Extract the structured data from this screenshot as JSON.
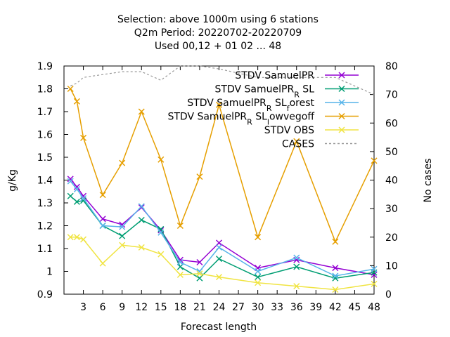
{
  "chart_data": {
    "type": "line",
    "title_lines": [
      "Selection: above 1000m using     6 stations",
      "Q2m   Period: 20220702-20220709",
      "Used  00,12  + 01 02 ... 48"
    ],
    "xlabel": "Forecast length",
    "ylabel": "g/Kg",
    "y2label": "No cases",
    "x_ticks": [
      3,
      6,
      9,
      12,
      15,
      18,
      21,
      24,
      27,
      30,
      33,
      36,
      39,
      42,
      45,
      48
    ],
    "y_ticks": [
      0.9,
      1.0,
      1.1,
      1.2,
      1.3,
      1.4,
      1.5,
      1.6,
      1.7,
      1.8,
      1.9
    ],
    "y_tick_labels": [
      "0.9",
      "1",
      "1.1",
      "1.2",
      "1.3",
      "1.4",
      "1.5",
      "1.6",
      "1.7",
      "1.8",
      "1.9"
    ],
    "y2_ticks": [
      0,
      10,
      20,
      30,
      40,
      50,
      60,
      70,
      80
    ],
    "xlim": [
      0,
      48
    ],
    "ylim": [
      0.9,
      1.9
    ],
    "y2lim": [
      0,
      80
    ],
    "grid": false,
    "legend_position": "top-right",
    "x": [
      1,
      2,
      3,
      6,
      9,
      12,
      15,
      18,
      21,
      24,
      30,
      36,
      42,
      48
    ],
    "series": [
      {
        "name": "STDV SamuelPR",
        "name_parts": [
          "STDV SamuelPR"
        ],
        "color": "#9400d3",
        "marker": "x",
        "axis": "y",
        "values": [
          1.405,
          1.37,
          1.33,
          1.23,
          1.205,
          1.28,
          1.18,
          1.05,
          1.04,
          1.125,
          1.015,
          1.05,
          1.015,
          0.985
        ]
      },
      {
        "name": "STDV SamuelPR_R SL",
        "name_parts": [
          "STDV SamuelPR",
          "R",
          " SL"
        ],
        "color": "#009e73",
        "marker": "x",
        "axis": "y",
        "values": [
          1.33,
          1.305,
          1.31,
          1.2,
          1.155,
          1.225,
          1.185,
          1.02,
          0.97,
          1.055,
          0.975,
          1.02,
          0.97,
          0.995
        ]
      },
      {
        "name": "STDV SamuelPR_R SL_forest",
        "name_parts": [
          "STDV SamuelPR",
          "R",
          " SL",
          "f",
          "orest"
        ],
        "color": "#56b4e9",
        "marker": "x",
        "axis": "y",
        "values": [
          1.395,
          1.36,
          1.32,
          1.2,
          1.195,
          1.285,
          1.17,
          1.04,
          1.0,
          1.105,
          1.0,
          1.06,
          0.98,
          1.01
        ]
      },
      {
        "name": "STDV SamuelPR_R SL_lowvegoff",
        "name_parts": [
          "STDV Sam",
          "uelPR",
          "R",
          " SL",
          "l",
          "owvegoff"
        ],
        "color": "#e69f00",
        "marker": "x",
        "axis": "y",
        "values": [
          1.8,
          1.745,
          1.585,
          1.335,
          1.475,
          1.7,
          1.49,
          1.2,
          1.415,
          1.73,
          1.15,
          1.57,
          1.13,
          1.485
        ]
      },
      {
        "name": "STDV OBS",
        "name_parts": [
          "STDV OBS"
        ],
        "color": "#f0e442",
        "marker": "x",
        "axis": "y",
        "values": [
          1.15,
          1.15,
          1.14,
          1.035,
          1.115,
          1.105,
          1.075,
          0.985,
          0.99,
          0.975,
          0.95,
          0.935,
          0.92,
          0.945
        ]
      },
      {
        "name": "CASES",
        "name_parts": [
          "CASES"
        ],
        "color": "#999999",
        "dash": true,
        "marker": "none",
        "axis": "y2",
        "values": [
          73,
          74,
          76,
          77,
          78,
          78,
          75,
          80,
          80,
          79,
          76,
          76,
          76,
          70
        ]
      }
    ]
  }
}
